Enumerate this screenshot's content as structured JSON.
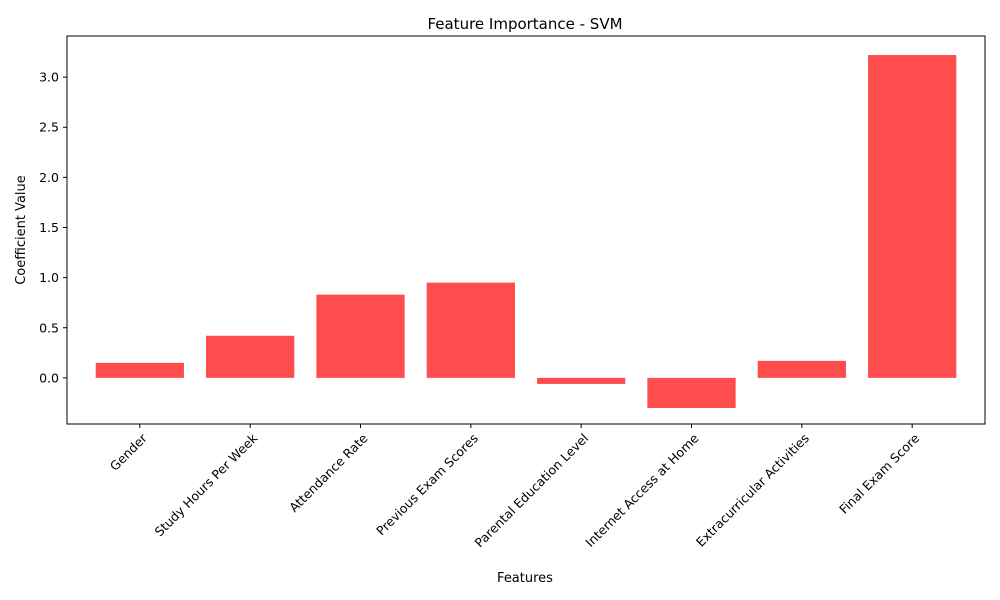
{
  "chart_data": {
    "type": "bar",
    "title": "Feature Importance - SVM",
    "xlabel": "Features",
    "ylabel": "Coefficient Value",
    "categories": [
      "Gender",
      "Study Hours Per Week",
      "Attendance Rate",
      "Previous Exam Scores",
      "Parental Education Level",
      "Internet Access at Home",
      "Extracurricular Activities",
      "Final Exam Score"
    ],
    "values": [
      0.15,
      0.42,
      0.83,
      0.95,
      -0.06,
      -0.3,
      0.17,
      3.22
    ],
    "ylim": [
      -0.46,
      3.41
    ],
    "yticks": [
      0.0,
      0.5,
      1.0,
      1.5,
      2.0,
      2.5,
      3.0
    ],
    "ytick_labels": [
      "0.0",
      "0.5",
      "1.0",
      "1.5",
      "2.0",
      "2.5",
      "3.0"
    ],
    "bar_color": "#ff4d4d",
    "grid": false,
    "legend": "none"
  }
}
